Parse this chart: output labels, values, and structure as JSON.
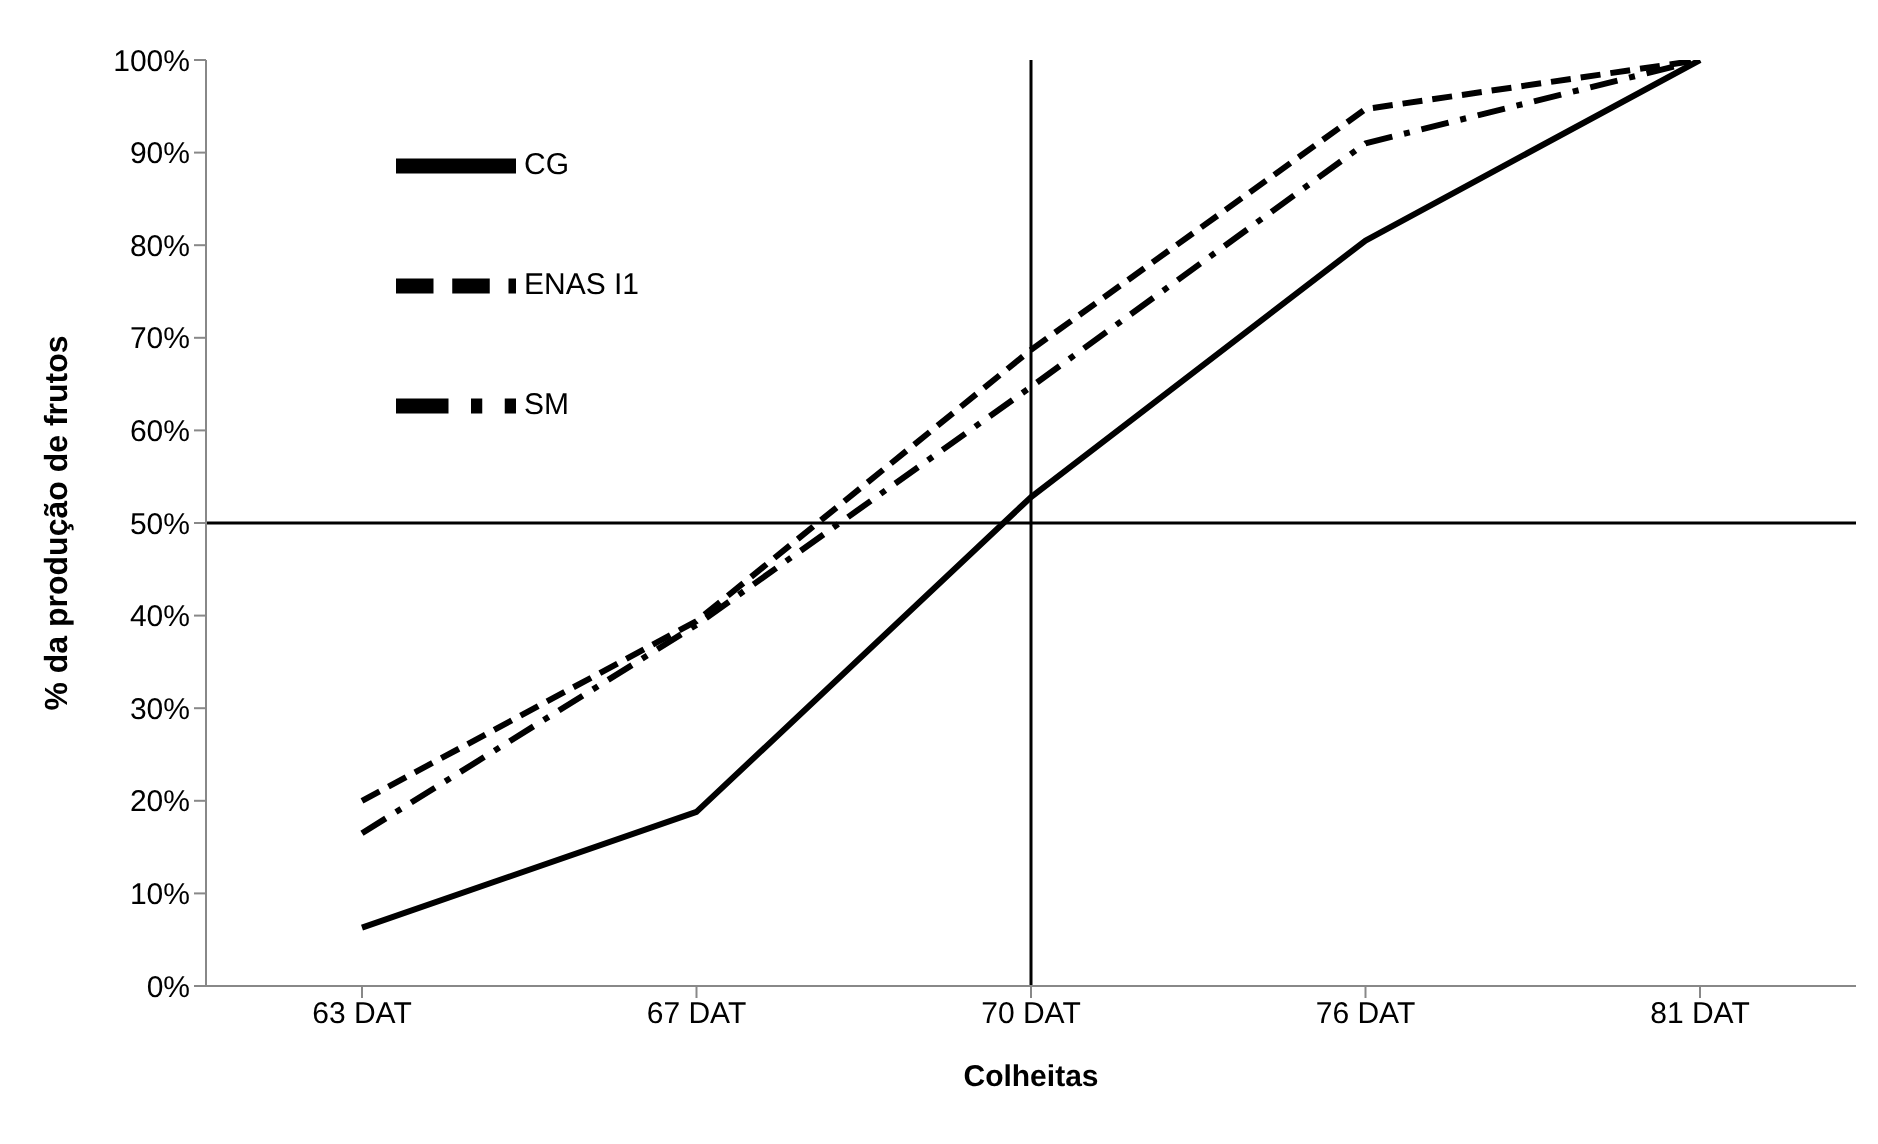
{
  "chart_data": {
    "type": "line",
    "xlabel": "Colheitas",
    "ylabel": "% da produção de frutos",
    "categories": [
      "63 DAT",
      "67 DAT",
      "70 DAT",
      "76 DAT",
      "81 DAT"
    ],
    "series": [
      {
        "name": "CG",
        "color": "#000000",
        "line_style": "solid",
        "values": [
          6.3,
          18.8,
          52.8,
          80.5,
          100
        ]
      },
      {
        "name": "ENAS I1",
        "color": "#000000",
        "line_style": "dashed",
        "values": [
          20,
          39.4,
          68.7,
          94.7,
          100
        ]
      },
      {
        "name": "SM",
        "color": "#000000",
        "line_style": "dashdot",
        "values": [
          16.5,
          39,
          64.7,
          91,
          100
        ]
      }
    ],
    "ylim": [
      0,
      100
    ],
    "yticks": [
      {
        "value": 0,
        "label": "0%"
      },
      {
        "value": 10,
        "label": "10%"
      },
      {
        "value": 20,
        "label": "20%"
      },
      {
        "value": 30,
        "label": "30%"
      },
      {
        "value": 40,
        "label": "40%"
      },
      {
        "value": 50,
        "label": "50%"
      },
      {
        "value": 60,
        "label": "60%"
      },
      {
        "value": 70,
        "label": "70%"
      },
      {
        "value": 80,
        "label": "80%"
      },
      {
        "value": 90,
        "label": "90%"
      },
      {
        "value": 100,
        "label": "100%"
      }
    ],
    "ref_lines": [
      {
        "axis": "x",
        "value": "70 DAT",
        "color": "#000000"
      },
      {
        "axis": "y",
        "value": 50,
        "color": "#000000"
      }
    ],
    "grid": false,
    "legend": "top left",
    "marker": "none"
  }
}
